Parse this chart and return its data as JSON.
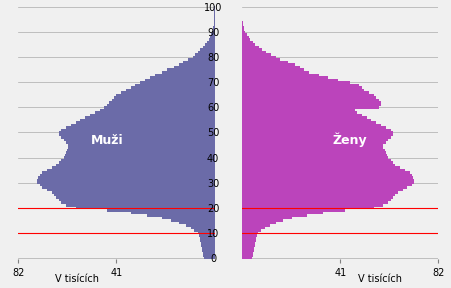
{
  "male_color": "#6B6BA8",
  "female_color": "#BB44BB",
  "male_label": "Muži",
  "female_label": "Ženy",
  "xlabel": "V tisících",
  "background_color": "#f0f0f0",
  "yticks": [
    0,
    10,
    20,
    30,
    40,
    50,
    60,
    70,
    80,
    90,
    100
  ],
  "xlim": 82,
  "red_line_ages": [
    10,
    20
  ],
  "ages": [
    0,
    1,
    2,
    3,
    4,
    5,
    6,
    7,
    8,
    9,
    10,
    11,
    12,
    13,
    14,
    15,
    16,
    17,
    18,
    19,
    20,
    21,
    22,
    23,
    24,
    25,
    26,
    27,
    28,
    29,
    30,
    31,
    32,
    33,
    34,
    35,
    36,
    37,
    38,
    39,
    40,
    41,
    42,
    43,
    44,
    45,
    46,
    47,
    48,
    49,
    50,
    51,
    52,
    53,
    54,
    55,
    56,
    57,
    58,
    59,
    60,
    61,
    62,
    63,
    64,
    65,
    66,
    67,
    68,
    69,
    70,
    71,
    72,
    73,
    74,
    75,
    76,
    77,
    78,
    79,
    80,
    81,
    82,
    83,
    84,
    85,
    86,
    87,
    88,
    89,
    90,
    91,
    92,
    93,
    94,
    95,
    96,
    97,
    98,
    99,
    100
  ],
  "males": [
    4.5,
    4.7,
    4.9,
    5.1,
    5.3,
    5.5,
    5.7,
    5.9,
    6.1,
    6.3,
    7.0,
    8.5,
    10.0,
    12.0,
    15.0,
    18.0,
    22.0,
    28.0,
    35.0,
    45.0,
    58.0,
    62.0,
    64.0,
    65.0,
    66.0,
    67.0,
    68.0,
    70.0,
    72.0,
    73.0,
    74.0,
    74.0,
    73.5,
    73.0,
    72.0,
    70.0,
    68.0,
    66.0,
    65.0,
    64.0,
    63.0,
    62.5,
    62.0,
    61.5,
    61.0,
    61.0,
    62.0,
    63.0,
    64.0,
    65.0,
    65.0,
    64.0,
    62.0,
    60.0,
    58.0,
    56.0,
    54.0,
    52.0,
    50.0,
    48.0,
    46.0,
    45.0,
    44.0,
    43.0,
    42.0,
    41.0,
    39.0,
    37.0,
    35.0,
    33.0,
    31.0,
    29.0,
    27.0,
    25.0,
    22.0,
    20.0,
    17.0,
    15.0,
    13.0,
    11.0,
    9.0,
    8.0,
    7.0,
    6.0,
    5.0,
    4.0,
    3.0,
    2.5,
    2.0,
    1.5,
    1.0,
    0.8,
    0.6,
    0.4,
    0.3,
    0.2,
    0.1,
    0.05,
    0.02,
    0.01,
    0.005
  ],
  "females": [
    4.3,
    4.5,
    4.7,
    4.9,
    5.1,
    5.3,
    5.5,
    5.7,
    5.9,
    6.1,
    6.8,
    8.0,
    9.5,
    11.5,
    14.0,
    17.0,
    21.0,
    27.0,
    34.0,
    43.0,
    55.0,
    59.0,
    61.0,
    62.0,
    63.0,
    64.0,
    65.0,
    67.0,
    69.0,
    71.0,
    72.0,
    72.0,
    71.5,
    71.0,
    70.0,
    68.0,
    66.0,
    64.0,
    63.0,
    62.0,
    61.0,
    60.5,
    60.0,
    59.5,
    59.0,
    59.0,
    60.0,
    61.0,
    62.0,
    63.0,
    63.0,
    62.0,
    60.0,
    58.0,
    56.0,
    54.0,
    52.0,
    50.0,
    48.0,
    47.0,
    57.0,
    58.0,
    58.0,
    57.0,
    56.0,
    55.0,
    53.0,
    51.0,
    50.0,
    49.0,
    45.0,
    40.0,
    36.0,
    32.0,
    28.0,
    26.0,
    24.0,
    22.0,
    19.0,
    16.0,
    14.0,
    12.0,
    10.0,
    8.5,
    7.0,
    5.5,
    4.5,
    3.5,
    2.8,
    2.0,
    1.4,
    1.0,
    0.7,
    0.5,
    0.3,
    0.2,
    0.1,
    0.05,
    0.02,
    0.01,
    0.005
  ]
}
